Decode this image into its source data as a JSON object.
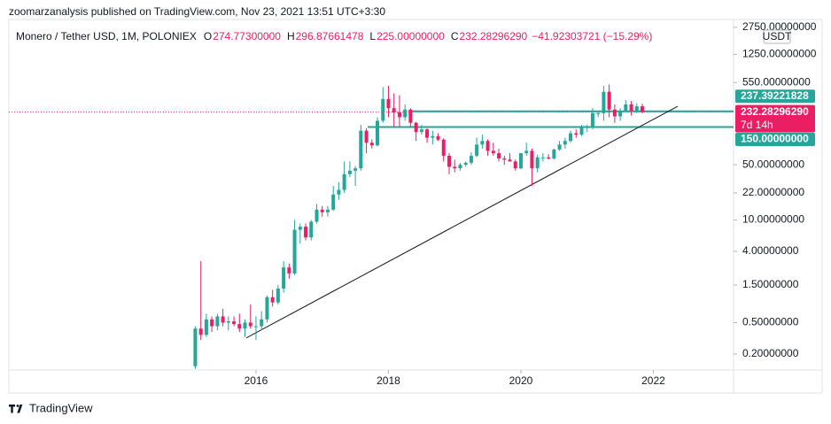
{
  "header": {
    "byline": "zoomarzanalysis published on TradingView.com, Nov 23, 2021 13:51 UTC+3:30"
  },
  "footer": {
    "brand": "TradingView"
  },
  "chart_data": {
    "type": "candlestick",
    "title": "Monero / Tether USD, 1M, POLONIEX",
    "ohlc_labels": [
      "O",
      "H",
      "L",
      "C"
    ],
    "ohlc_values": [
      "274.77300000",
      "296.87661478",
      "225.00000000",
      "232.28296290"
    ],
    "change": "−41.92303721 (−15.29%)",
    "currency": "USDT",
    "log_scale": true,
    "grid": false,
    "up_color": "#26a69a",
    "down_color": "#e91e63",
    "xlim": [
      2012.268,
      2023.211
    ],
    "xticks": [
      2016,
      2018,
      2020,
      2022
    ],
    "ylim": [
      0.1256,
      3834
    ],
    "yticks": [
      {
        "value": 2750,
        "label": "2750.00000000"
      },
      {
        "value": 1250,
        "label": "1250.00000000"
      },
      {
        "value": 550,
        "label": "550.00000000"
      },
      {
        "value": 50,
        "label": "50.00000000"
      },
      {
        "value": 22,
        "label": "22.00000000"
      },
      {
        "value": 10,
        "label": "10.00000000"
      },
      {
        "value": 4,
        "label": "4.00000000"
      },
      {
        "value": 1.5,
        "label": "1.50000000"
      },
      {
        "value": 0.5,
        "label": "0.50000000"
      },
      {
        "value": 0.2,
        "label": "0.20000000"
      }
    ],
    "candles": {
      "x": [
        2015.083,
        2015.167,
        2015.25,
        2015.333,
        2015.417,
        2015.5,
        2015.583,
        2015.667,
        2015.75,
        2015.833,
        2015.917,
        2016,
        2016.083,
        2016.167,
        2016.25,
        2016.333,
        2016.417,
        2016.5,
        2016.583,
        2016.667,
        2016.75,
        2016.833,
        2016.917,
        2017,
        2017.083,
        2017.167,
        2017.25,
        2017.333,
        2017.417,
        2017.5,
        2017.583,
        2017.667,
        2017.75,
        2017.833,
        2017.917,
        2018,
        2018.083,
        2018.167,
        2018.25,
        2018.333,
        2018.417,
        2018.5,
        2018.583,
        2018.667,
        2018.75,
        2018.833,
        2018.917,
        2019,
        2019.083,
        2019.167,
        2019.25,
        2019.333,
        2019.417,
        2019.5,
        2019.583,
        2019.667,
        2019.75,
        2019.833,
        2019.917,
        2020,
        2020.083,
        2020.167,
        2020.25,
        2020.333,
        2020.417,
        2020.5,
        2020.583,
        2020.667,
        2020.75,
        2020.833,
        2020.917,
        2021,
        2021.083,
        2021.167,
        2021.25,
        2021.333,
        2021.417,
        2021.5,
        2021.583,
        2021.667,
        2021.75,
        2021.833
      ],
      "open": [
        0.14,
        0.42,
        0.35,
        0.55,
        0.45,
        0.6,
        0.5,
        0.52,
        0.48,
        0.42,
        0.5,
        0.45,
        0.45,
        0.55,
        1.05,
        0.9,
        1.35,
        2.5,
        2.1,
        7.5,
        8.2,
        6,
        9.5,
        13.5,
        12.5,
        13.5,
        21,
        24,
        38,
        42,
        45,
        135,
        95,
        88,
        180,
        340,
        260,
        230,
        200,
        250,
        170,
        130,
        140,
        110,
        115,
        104,
        65,
        47,
        45,
        50,
        53,
        65,
        90,
        100,
        75,
        70,
        60,
        58,
        55,
        45,
        70,
        75,
        45,
        62,
        62,
        60,
        78,
        90,
        100,
        125,
        120,
        150,
        150,
        225,
        225,
        420,
        250,
        205,
        235,
        290,
        240,
        274.773
      ],
      "high": [
        0.45,
        3.0,
        0.65,
        0.6,
        0.65,
        0.75,
        0.6,
        0.6,
        0.65,
        0.55,
        0.85,
        0.6,
        0.7,
        1.1,
        1.3,
        1.5,
        3.0,
        2.8,
        10,
        9,
        9,
        10,
        16,
        15,
        15,
        27,
        30,
        55,
        55,
        48,
        160,
        145,
        105,
        200,
        480,
        500,
        400,
        380,
        290,
        260,
        175,
        160,
        145,
        135,
        125,
        108,
        70,
        58,
        53,
        55,
        72,
        110,
        120,
        105,
        95,
        80,
        65,
        70,
        58,
        70,
        95,
        80,
        67,
        70,
        68,
        80,
        100,
        110,
        135,
        140,
        160,
        160,
        260,
        240,
        500,
        520,
        290,
        260,
        330,
        320,
        300,
        296.87661478
      ],
      "low": [
        0.13,
        0.3,
        0.33,
        0.38,
        0.4,
        0.45,
        0.4,
        0.45,
        0.38,
        0.33,
        0.42,
        0.3,
        0.4,
        0.5,
        0.8,
        0.85,
        1.2,
        1.8,
        2,
        5,
        5.5,
        5.5,
        9,
        11,
        11,
        13,
        18,
        22,
        35,
        27,
        42,
        70,
        80,
        85,
        170,
        200,
        150,
        150,
        180,
        150,
        100,
        120,
        95,
        90,
        100,
        55,
        38,
        40,
        42,
        47,
        50,
        62,
        80,
        65,
        65,
        55,
        50,
        55,
        42,
        44,
        65,
        27,
        40,
        55,
        58,
        58,
        75,
        80,
        95,
        110,
        115,
        130,
        140,
        200,
        180,
        200,
        170,
        180,
        230,
        210,
        225,
        225
      ],
      "close": [
        0.42,
        0.35,
        0.55,
        0.45,
        0.6,
        0.5,
        0.52,
        0.48,
        0.42,
        0.5,
        0.45,
        0.45,
        0.55,
        1.05,
        0.9,
        1.35,
        2.5,
        2.1,
        7.5,
        8.2,
        6,
        9.5,
        13.5,
        12.5,
        13.5,
        21,
        24,
        38,
        42,
        45,
        135,
        95,
        88,
        180,
        340,
        260,
        230,
        200,
        250,
        170,
        130,
        140,
        110,
        115,
        104,
        65,
        47,
        45,
        50,
        53,
        65,
        90,
        100,
        75,
        70,
        60,
        58,
        55,
        45,
        70,
        75,
        45,
        62,
        62,
        60,
        78,
        90,
        100,
        125,
        120,
        150,
        150,
        225,
        225,
        420,
        250,
        205,
        235,
        290,
        240,
        274.773,
        232.2829629
      ]
    },
    "levels": [
      {
        "value": 237.39221828,
        "label": "237.39221828",
        "x_start": 2018.355,
        "color": "#26a69a"
      },
      {
        "value": 150,
        "label": "150.00000000",
        "x_start": 2017.686,
        "color": "#26a69a"
      }
    ],
    "last_price": {
      "value": 232.2829629,
      "label": "232.28296290",
      "countdown": "7d 14h",
      "color": "#e91e63"
    },
    "trendline": {
      "x": [
        2015.853,
        2022.368
      ],
      "y": [
        0.32,
        275
      ],
      "color": "#131722"
    }
  }
}
